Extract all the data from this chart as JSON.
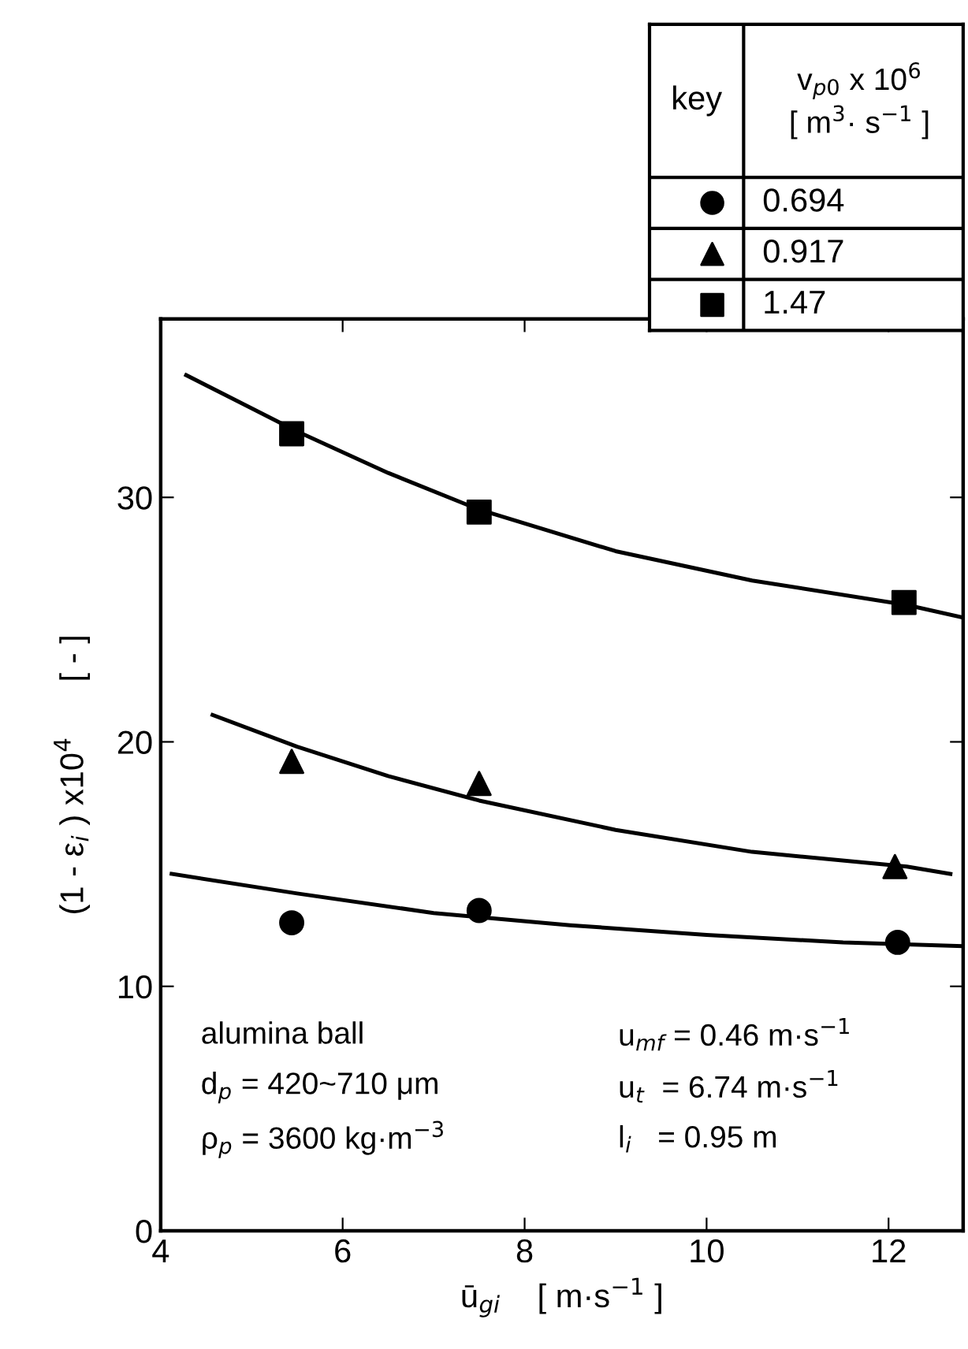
{
  "chart_data": {
    "type": "scatter",
    "xlabel": "ū$_{gi}$    [ m·s$^{−1}$ ]",
    "ylabel": "(1 - ε$_{i}$ ) x10$^{4}$      [ - ]",
    "legend_title": "v$_{p0}$ x 10$^{6}$\n[ m$^{3}$· s$^{−1}$ ]",
    "legend": "top right",
    "annotations": [
      "key",
      "alumina ball",
      "u$_{mf}$ = 0.46 m·s$^{−1}$",
      "d$_{p}$ = 420~710 μm",
      "u$_{t}$  = 6.74 m·s$^{−1}$",
      "ρ$_{p}$ = 3600 kg·m$^{−3}$",
      "l$_{i}$   = 0.95 m"
    ],
    "xlim": [
      4,
      12.82
    ],
    "ylim": [
      0,
      37.3
    ],
    "xticks": [
      4,
      6,
      8,
      10,
      12
    ],
    "yticks": [
      0,
      10,
      20,
      30
    ],
    "grid": false,
    "series": [
      {
        "name": "0.694",
        "color": "#000000",
        "marker": "circle",
        "x": [
          5.44,
          7.5,
          12.1
        ],
        "values": [
          12.6,
          13.1,
          11.8
        ]
      },
      {
        "name": "0.917",
        "color": "#000000",
        "marker": "triangle",
        "x": [
          5.44,
          7.5,
          12.07
        ],
        "values": [
          19.2,
          18.3,
          14.9
        ]
      },
      {
        "name": "1.47",
        "color": "#000000",
        "marker": "square",
        "x": [
          5.44,
          7.5,
          12.17
        ],
        "values": [
          32.6,
          29.4,
          25.7
        ]
      },
      {
        "type": "line",
        "color": "#000000",
        "marker": "none",
        "x": [
          4.12,
          5.5,
          7,
          8.5,
          10,
          11.5,
          12.8
        ],
        "values": [
          14.6,
          13.8,
          13.0,
          12.5,
          12.1,
          11.8,
          11.65
        ]
      },
      {
        "type": "line",
        "color": "#000000",
        "marker": "none",
        "x": [
          4.57,
          5.5,
          6.5,
          7.5,
          9,
          10.5,
          12.2,
          12.68
        ],
        "values": [
          21.1,
          19.8,
          18.6,
          17.6,
          16.4,
          15.5,
          14.9,
          14.6
        ]
      },
      {
        "type": "line",
        "color": "#000000",
        "marker": "none",
        "x": [
          4.28,
          5.5,
          6.5,
          7.5,
          9,
          10.5,
          12.2,
          12.8
        ],
        "values": [
          35.0,
          32.7,
          31.0,
          29.5,
          27.8,
          26.6,
          25.6,
          25.1
        ]
      }
    ]
  }
}
